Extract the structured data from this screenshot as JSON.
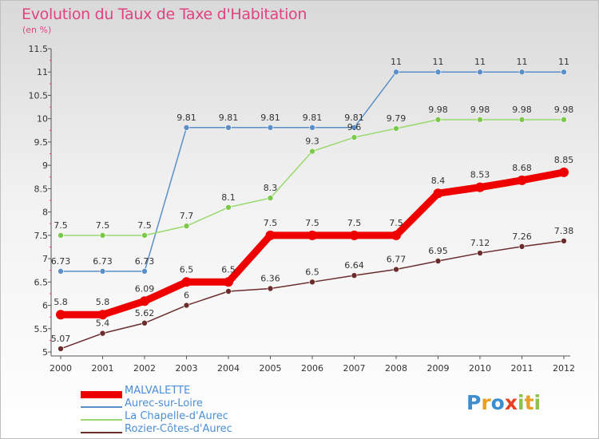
{
  "title": "Evolution du Taux de Taxe d'Habitation",
  "unit": "(en %)",
  "colors": {
    "title": "#e0437f",
    "MALVALETTE": "#ee0000",
    "Aurec-sur-Loire": "#5b8fc8",
    "La Chapelle-d'Aurec": "#99d96e",
    "Rozier-Côtes-d'Aurec": "#6b2c2c",
    "legend_text": "#4a8fd8"
  },
  "logo": {
    "letters": [
      "P",
      "r",
      "o",
      "x",
      "i",
      "t",
      "i"
    ]
  },
  "chart_data": {
    "type": "line",
    "title": "Evolution du Taux de Taxe d'Habitation",
    "ylabel": "(en %)",
    "xlabel": "",
    "x": [
      "2000",
      "2001",
      "2002",
      "2003",
      "2004",
      "2005",
      "2006",
      "2007",
      "2008",
      "2009",
      "2010",
      "2011",
      "2012"
    ],
    "ylim": [
      5,
      11.5
    ],
    "yticks": [
      "5",
      "5.5",
      "6",
      "6.5",
      "7",
      "7.5",
      "8",
      "8.5",
      "9",
      "9.5",
      "10",
      "10.5",
      "11",
      "11.5"
    ],
    "grid": false,
    "legend_position": "bottom-left",
    "series": [
      {
        "name": "MALVALETTE",
        "values": [
          5.8,
          5.8,
          6.09,
          6.5,
          6.5,
          7.5,
          7.5,
          7.5,
          7.5,
          8.4,
          8.53,
          8.68,
          8.85
        ],
        "labels": [
          "5.8",
          "5.8",
          "6.09",
          "6.5",
          "6.5",
          "7.5",
          "7.5",
          "7.5",
          "7.5",
          "8.4",
          "8.53",
          "8.68",
          "8.85"
        ]
      },
      {
        "name": "Aurec-sur-Loire",
        "values": [
          6.73,
          6.73,
          6.73,
          9.81,
          9.81,
          9.81,
          9.81,
          9.81,
          11,
          11,
          11,
          11,
          11
        ],
        "labels": [
          "6.73",
          "6.73",
          "6.73",
          "9.81",
          "9.81",
          "9.81",
          "9.81",
          "9.81",
          "11",
          "11",
          "11",
          "11",
          "11"
        ]
      },
      {
        "name": "La Chapelle-d'Aurec",
        "values": [
          7.5,
          7.5,
          7.5,
          7.7,
          8.1,
          8.3,
          9.3,
          9.6,
          9.79,
          9.98,
          9.98,
          9.98,
          9.98
        ],
        "labels": [
          "7.5",
          "7.5",
          "7.5",
          "7.7",
          "8.1",
          "8.3",
          "9.3",
          "9.6",
          "9.79",
          "9.98",
          "9.98",
          "9.98",
          "9.98"
        ]
      },
      {
        "name": "Rozier-Côtes-d'Aurec",
        "values": [
          5.07,
          5.4,
          5.62,
          6,
          6.3,
          6.36,
          6.5,
          6.64,
          6.77,
          6.95,
          7.12,
          7.26,
          7.38
        ],
        "labels": [
          "5.07",
          "5.4",
          "5.62",
          "6",
          "",
          "6.36",
          "6.5",
          "6.64",
          "6.77",
          "6.95",
          "7.12",
          "7.26",
          "7.38"
        ]
      }
    ]
  }
}
